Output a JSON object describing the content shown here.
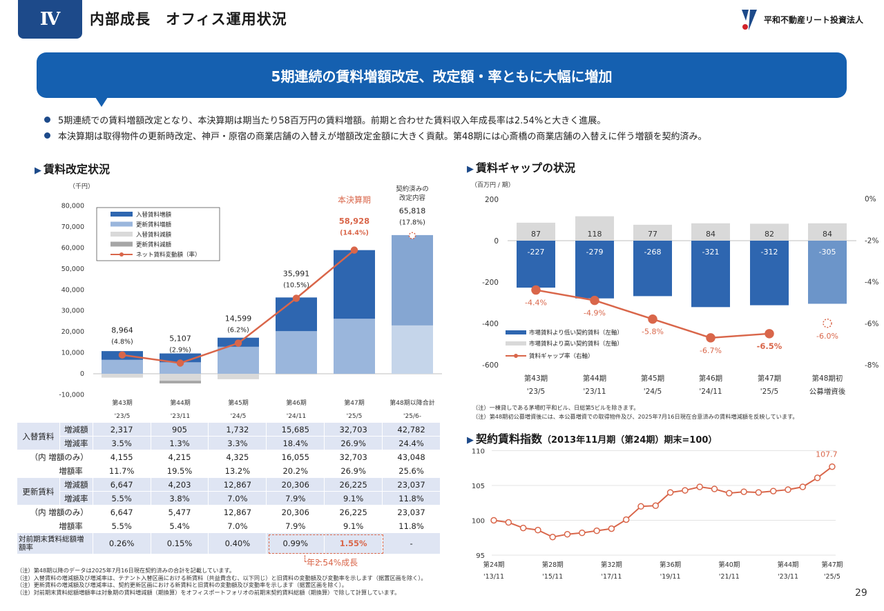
{
  "header": {
    "section": "Ⅳ",
    "title": "内部成長　オフィス運用状況",
    "logo_text": "平和不動産リート投資法人"
  },
  "banner": "5期連続の賃料増額改定、改定額・率ともに大幅に増加",
  "bullets": [
    "5期連続での賃料増額改定となり、本決算期は期当たり58百万円の賃料増額。前期と合わせた賃料収入年成長率は2.54%と大きく進展。",
    "本決算期は取得物件の更新時改定、神戸・原宿の商業店舗の入替えが増額改定金額に大きく貢献。第48期には心斎橋の商業店舗の入替えに伴う増額を契約済み。"
  ],
  "left_section": {
    "title": "賃料改定状況"
  },
  "right_section": {
    "title": "賃料ギャップの状況"
  },
  "index_section": {
    "title": "契約賃料指数",
    "subtitle": "（2013年11月期（第24期）期末=100）"
  },
  "chart_data": [
    {
      "type": "bar",
      "title": "",
      "unit": "（千円）",
      "ylim": [
        -10000,
        80000
      ],
      "yticks": [
        "80,000",
        "70,000",
        "60,000",
        "50,000",
        "40,000",
        "30,000",
        "20,000",
        "10,000",
        "0",
        "-10,000"
      ],
      "categories": [
        [
          "第43期",
          "'23/5"
        ],
        [
          "第44期",
          "'23/11"
        ],
        [
          "第45期",
          "'24/5"
        ],
        [
          "第46期",
          "'24/11"
        ],
        [
          "第47期",
          "'25/5"
        ],
        [
          "第48期以降合計",
          "'25/6-"
        ]
      ],
      "series": [
        {
          "name": "入替賃料増額",
          "color": "#2e66b0",
          "values": [
            4155,
            4215,
            4325,
            16055,
            32703,
            43048
          ]
        },
        {
          "name": "更新賃料増額",
          "color": "#9ab6dc",
          "values": [
            6647,
            5477,
            12867,
            20306,
            26225,
            23037
          ]
        },
        {
          "name": "入替賃料減額",
          "color": "#d9d9d9",
          "values": [
            -1838,
            -3310,
            -2593,
            -370,
            0,
            -266
          ]
        },
        {
          "name": "更新賃料減額",
          "color": "#a6a6a6",
          "values": [
            0,
            -1274,
            0,
            0,
            0,
            0
          ]
        },
        {
          "name": "ネット賃料変動額（率）",
          "color": "#d9664a",
          "values": [
            8964,
            5107,
            14599,
            35991,
            58928,
            65818
          ]
        }
      ],
      "net_labels": [
        "8,964",
        "5,107",
        "14,599",
        "35,991",
        "58,928",
        "65,818"
      ],
      "rate_labels": [
        "(4.8%)",
        "(2.9%)",
        "(6.2%)",
        "(10.5%)",
        "(14.4%)",
        "(17.8%)"
      ],
      "annotations": {
        "current": "本決算期",
        "contracted": "契約済みの改定内容"
      }
    },
    {
      "type": "bar",
      "title": "",
      "unit": "（百万円 / 期）",
      "ylim": [
        -600,
        200
      ],
      "y2lim": [
        -8,
        0
      ],
      "yticks": [
        "200",
        "0",
        "-200",
        "-400",
        "-600"
      ],
      "y2ticks": [
        "0%",
        "-2%",
        "-4%",
        "-6%",
        "-8%"
      ],
      "categories": [
        [
          "第43期",
          "'23/5"
        ],
        [
          "第44期",
          "'23/11"
        ],
        [
          "第45期",
          "'24/5"
        ],
        [
          "第46期",
          "'24/11"
        ],
        [
          "第47期",
          "'25/5"
        ],
        [
          "第48期初",
          "公募増資後"
        ]
      ],
      "series": [
        {
          "name": "市場賃料より低い契約賃料（左軸）",
          "color": "#2e66b0",
          "values": [
            -227,
            -279,
            -268,
            -321,
            -312,
            -305
          ]
        },
        {
          "name": "市場賃料より高い契約賃料（左軸）",
          "color": "#d9d9d9",
          "values": [
            87,
            118,
            77,
            84,
            82,
            84
          ]
        },
        {
          "name": "賃料ギャップ率（右軸）",
          "color": "#d9664a",
          "values": [
            -4.4,
            -4.9,
            -5.8,
            -6.7,
            -6.5,
            -6.0
          ]
        }
      ],
      "gap_labels": [
        "-4.4%",
        "-4.9%",
        "-5.8%",
        "-6.7%",
        "-6.5%",
        "-6.0%"
      ]
    },
    {
      "type": "line",
      "title": "",
      "ylim": [
        95,
        110
      ],
      "yticks": [
        "110",
        "105",
        "100",
        "95"
      ],
      "xticks": [
        [
          "第24期",
          "'13/11"
        ],
        [
          "第28期",
          "'15/11"
        ],
        [
          "第32期",
          "'17/11"
        ],
        [
          "第36期",
          "'19/11"
        ],
        [
          "第40期",
          "'21/11"
        ],
        [
          "第44期",
          "'23/11"
        ],
        [
          "第47期",
          "'25/5"
        ]
      ],
      "x": [
        24,
        25,
        26,
        27,
        28,
        29,
        30,
        31,
        32,
        33,
        34,
        35,
        36,
        37,
        38,
        39,
        40,
        41,
        42,
        43,
        44,
        45,
        46,
        47
      ],
      "values": [
        100.0,
        99.7,
        98.9,
        98.6,
        97.6,
        98.0,
        98.2,
        98.5,
        98.8,
        100.1,
        102.0,
        102.1,
        104.0,
        104.3,
        104.8,
        104.5,
        103.9,
        104.1,
        104.0,
        104.2,
        104.4,
        104.8,
        106.1,
        107.7
      ],
      "last_label": "107.7",
      "color": "#d9664a"
    }
  ],
  "table": {
    "rows": [
      {
        "group": "入替賃料",
        "label": "増減額",
        "values": [
          "2,317",
          "905",
          "1,732",
          "15,685",
          "32,703",
          "42,782"
        ]
      },
      {
        "group": "",
        "label": "増減率",
        "values": [
          "3.5%",
          "1.3%",
          "3.3%",
          "18.4%",
          "26.9%",
          "24.4%"
        ]
      },
      {
        "group": "（内 増額のみ）",
        "label": "",
        "values": [
          "4,155",
          "4,215",
          "4,325",
          "16,055",
          "32,703",
          "43,048"
        ]
      },
      {
        "group": "",
        "label": "増額率",
        "values": [
          "11.7%",
          "19.5%",
          "13.2%",
          "20.2%",
          "26.9%",
          "25.6%"
        ]
      },
      {
        "group": "更新賃料",
        "label": "増減額",
        "values": [
          "6,647",
          "4,203",
          "12,867",
          "20,306",
          "26,225",
          "23,037"
        ]
      },
      {
        "group": "",
        "label": "増減率",
        "values": [
          "5.5%",
          "3.8%",
          "7.0%",
          "7.9%",
          "9.1%",
          "11.8%"
        ]
      },
      {
        "group": "（内 増額のみ）",
        "label": "",
        "values": [
          "6,647",
          "5,477",
          "12,867",
          "20,306",
          "26,225",
          "23,037"
        ]
      },
      {
        "group": "",
        "label": "増額率",
        "values": [
          "5.5%",
          "5.4%",
          "7.0%",
          "7.9%",
          "9.1%",
          "11.8%"
        ]
      },
      {
        "group": "対前期末賃料総額増額率",
        "label": "",
        "values": [
          "0.26%",
          "0.15%",
          "0.40%",
          "0.99%",
          "1.55%",
          "-"
        ]
      }
    ],
    "growth_note": "年2.54%成長"
  },
  "notes_left": [
    "（注）第48期以降のデータは2025年7月16日現在契約済みの合計を記載しています。",
    "（注）入替賃料の増減額及び増減率は、テナント入替区画における新賃料（共益費含む、以下同じ）と旧賃料の変動額及び変動率を示します（据置区画を除く）。",
    "（注）更新賃料の増減額及び増減率は、契約更新区画における新賃料と旧賃料の変動額及び変動率を示します（据置区画を除く）。",
    "（注）対前期末賃料総額増額率は対象期の賃料増減額（期換算）をオフィスポートフォリオの前期末契約賃料総額（期換算）で除して計算しています。"
  ],
  "notes_right": [
    "（注）一棟貸しである茅場町平和ビル、日総第5ビルを除きます。",
    "（注）第48期初公募増資後には、本公募増資での取得物件及び、2025年7月16日現在合意済みの賃料増減額を反映しています。"
  ],
  "page_number": "29"
}
